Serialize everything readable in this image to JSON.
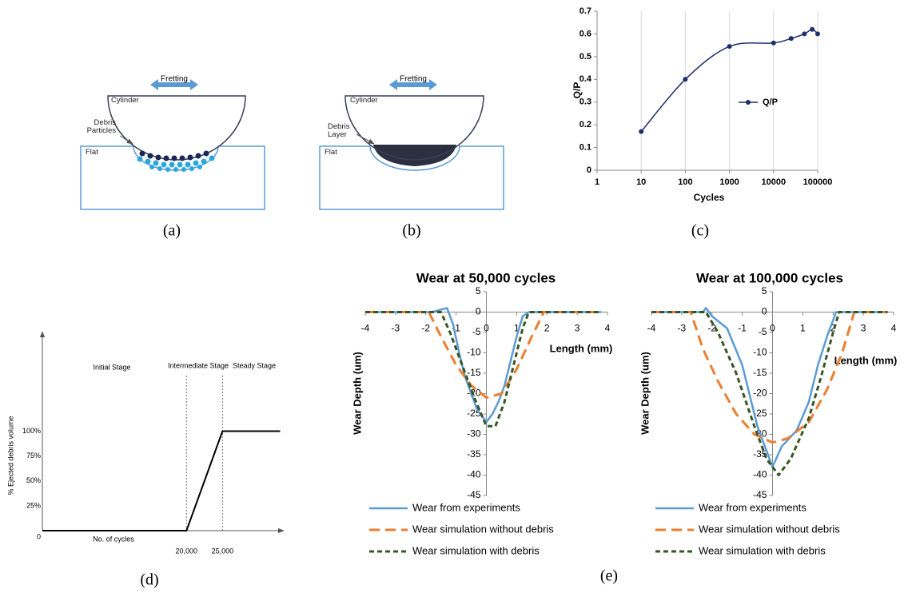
{
  "diagrams": [
    {
      "arrow_label": "Fretting",
      "labels": [
        "Cylinder",
        "Debris Particles",
        "Flat"
      ]
    },
    {
      "arrow_label": "Fretting",
      "labels": [
        "Cylinder",
        "Debris Layer",
        "Flat"
      ]
    }
  ],
  "captions": [
    "(a)",
    "(b)",
    "(c)",
    "(d)",
    "(e)"
  ],
  "chart_data": [
    {
      "type": "line",
      "xscale": "log",
      "grid": "x",
      "legend": "right",
      "markers": true,
      "x_label": "Cycles",
      "y_label": "Q/P",
      "xlim": [
        1,
        100000
      ],
      "xticks": [
        1,
        10,
        100,
        1000,
        10000,
        100000
      ],
      "ylim": [
        0,
        0.7
      ],
      "yticks": [
        0,
        0.1,
        0.2,
        0.3,
        0.4,
        0.5,
        0.6,
        0.7
      ],
      "series": [
        {
          "name": "Q/P",
          "color": "#1f2f6b",
          "dash": "solid",
          "x": [
            10,
            100,
            1000,
            10000,
            25000,
            50000,
            75000,
            100000
          ],
          "values": [
            0.17,
            0.4,
            0.545,
            0.56,
            0.58,
            0.6,
            0.62,
            0.6
          ]
        }
      ]
    },
    {
      "type": "line",
      "annotations": [
        "Initial Stage",
        "Intermediate Stage",
        "Steady Stage"
      ],
      "x_label": "No. of cycles",
      "y_label": "% Ejected debris volume",
      "xlim": [
        0,
        33500
      ],
      "xticks": [
        {
          "value": 20000,
          "label": "20,000"
        },
        {
          "value": 25000,
          "label": "25,000"
        }
      ],
      "ylim": [
        0,
        200
      ],
      "yticks": [
        0,
        {
          "value": 25,
          "label": "25%"
        },
        {
          "value": 50,
          "label": "50%"
        },
        {
          "value": 75,
          "label": "75%"
        },
        {
          "value": 100,
          "label": "100%"
        }
      ],
      "series": [
        {
          "color": "#000000",
          "dash": "solid",
          "x": [
            0,
            20000,
            25000,
            33000
          ],
          "values": [
            0,
            0,
            100,
            100
          ]
        }
      ]
    },
    {
      "type": "line",
      "title": "Wear at 50,000 cycles",
      "axis_position": "zero",
      "x_label": "Length (mm)",
      "y_label": "Wear Depth (um)",
      "xlim": [
        -4,
        4
      ],
      "xticks": [
        -4,
        -3,
        -2,
        -1,
        0,
        1,
        2,
        3,
        4
      ],
      "ylim": [
        -45,
        5
      ],
      "yticks": [
        -45,
        -40,
        -35,
        -30,
        -25,
        -20,
        -15,
        -10,
        -5,
        0,
        5
      ],
      "series": [
        {
          "name": "Wear from experiments",
          "color": "#5b9bd5",
          "dash": "solid",
          "x": [
            -4,
            -1.8,
            -1.3,
            -1.1,
            -0.9,
            -0.7,
            -0.5,
            -0.3,
            -0.1,
            0,
            0.2,
            0.4,
            0.6,
            0.8,
            1.0,
            1.2,
            1.4,
            3.8
          ],
          "values": [
            0,
            0,
            1,
            -3,
            -10,
            -16,
            -20,
            -24,
            -26,
            -27,
            -25,
            -22,
            -18,
            -12,
            -6,
            -1,
            0,
            0
          ]
        },
        {
          "name": "Wear simulation without debris",
          "color": "#ed7d31",
          "dash": "long",
          "x": [
            -4,
            -1.9,
            -1.5,
            -1,
            -0.5,
            0,
            0.5,
            1,
            1.5,
            1.9,
            3.8
          ],
          "values": [
            0,
            0,
            -6,
            -13,
            -18,
            -21,
            -20,
            -14,
            -6,
            0,
            0
          ]
        },
        {
          "name": "Wear simulation with debris",
          "color": "#375623",
          "dash": "short",
          "x": [
            -4,
            -1.5,
            -1.2,
            -0.8,
            -0.4,
            0,
            0.3,
            0.6,
            0.9,
            1.2,
            1.4,
            3.8
          ],
          "values": [
            0,
            0,
            -5,
            -13,
            -21,
            -28,
            -28,
            -22,
            -13,
            -4,
            0,
            0
          ]
        }
      ]
    },
    {
      "type": "line",
      "title": "Wear at 100,000 cycles",
      "axis_position": "zero",
      "x_label": "Length (mm)",
      "y_label": "Wear Depth (um)",
      "xlim": [
        -4,
        4
      ],
      "xticks": [
        -4,
        -3,
        -2,
        -1,
        0,
        1,
        2,
        3,
        4
      ],
      "ylim": [
        -45,
        5
      ],
      "yticks": [
        -45,
        -40,
        -35,
        -30,
        -25,
        -20,
        -15,
        -10,
        -5,
        0,
        5
      ],
      "series": [
        {
          "name": "Wear from experiments",
          "color": "#5b9bd5",
          "dash": "solid",
          "x": [
            -4,
            -2.3,
            -2.2,
            -2,
            -1.5,
            -1,
            -0.5,
            -0.2,
            0,
            0.3,
            0.8,
            1.2,
            1.5,
            1.8,
            2.1,
            3.7
          ],
          "values": [
            0,
            0,
            1,
            -1,
            -4,
            -13,
            -28,
            -34,
            -38,
            -33,
            -29,
            -22,
            -13,
            -6,
            0,
            0
          ]
        },
        {
          "name": "Wear simulation without debris",
          "color": "#ed7d31",
          "dash": "long",
          "x": [
            -4,
            -2.7,
            -2.3,
            -1.8,
            -1.2,
            -0.6,
            0,
            0.5,
            1.2,
            1.8,
            2.3,
            2.7,
            3.8
          ],
          "values": [
            0,
            0,
            -9,
            -17,
            -25,
            -30,
            -32,
            -31,
            -27,
            -19,
            -10,
            0,
            0
          ]
        },
        {
          "name": "Wear simulation with debris",
          "color": "#375623",
          "dash": "short",
          "x": [
            -4,
            -2.2,
            -1.8,
            -1.2,
            -0.6,
            -0.2,
            0.2,
            0.6,
            1.2,
            1.6,
            2.0,
            2.2,
            3.8
          ],
          "values": [
            0,
            0,
            -5,
            -15,
            -28,
            -36,
            -40,
            -36,
            -26,
            -16,
            -5,
            0,
            0
          ]
        }
      ]
    }
  ]
}
